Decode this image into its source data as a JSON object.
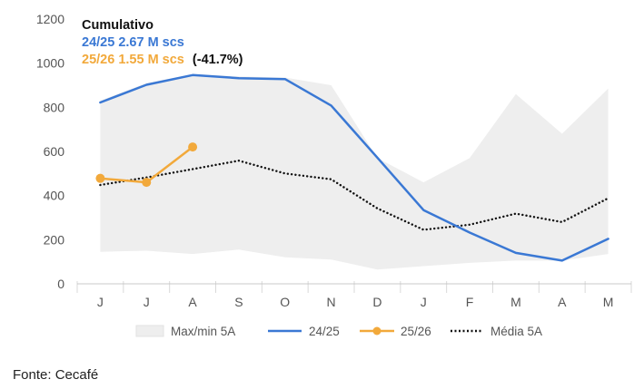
{
  "chart_data": {
    "type": "line",
    "categories": [
      "J",
      "J",
      "A",
      "S",
      "O",
      "N",
      "D",
      "J",
      "F",
      "M",
      "A",
      "M"
    ],
    "ylim": [
      0,
      1200
    ],
    "yticks": [
      0,
      200,
      400,
      600,
      800,
      1000,
      1200
    ],
    "series": [
      {
        "name": "Max/min 5A",
        "type": "band",
        "upper": [
          830,
          910,
          950,
          940,
          935,
          900,
          570,
          460,
          570,
          860,
          680,
          885
        ],
        "lower": [
          145,
          150,
          135,
          155,
          120,
          110,
          65,
          80,
          95,
          105,
          105,
          135
        ],
        "color": "#eeeeee"
      },
      {
        "name": "24/25",
        "type": "line",
        "values": [
          822,
          902,
          946,
          932,
          928,
          808,
          572,
          334,
          232,
          140,
          105,
          204
        ],
        "color": "#3a78d4"
      },
      {
        "name": "25/26",
        "type": "line-markers",
        "values": [
          478,
          460,
          620,
          null,
          null,
          null,
          null,
          null,
          null,
          null,
          null,
          null
        ],
        "color": "#f2a93b"
      },
      {
        "name": "Média 5A",
        "type": "dotted",
        "values": [
          448,
          482,
          520,
          558,
          500,
          474,
          342,
          245,
          268,
          318,
          280,
          388
        ],
        "color": "#111111"
      }
    ],
    "annotations": {
      "title": "Cumulativo",
      "line1": "24/25 2.67 M scs",
      "line2": "25/26 1.55 M scs",
      "line2_suffix": "(-41.7%)"
    },
    "legend_position": "bottom"
  },
  "source": "Fonte: Cecafé"
}
